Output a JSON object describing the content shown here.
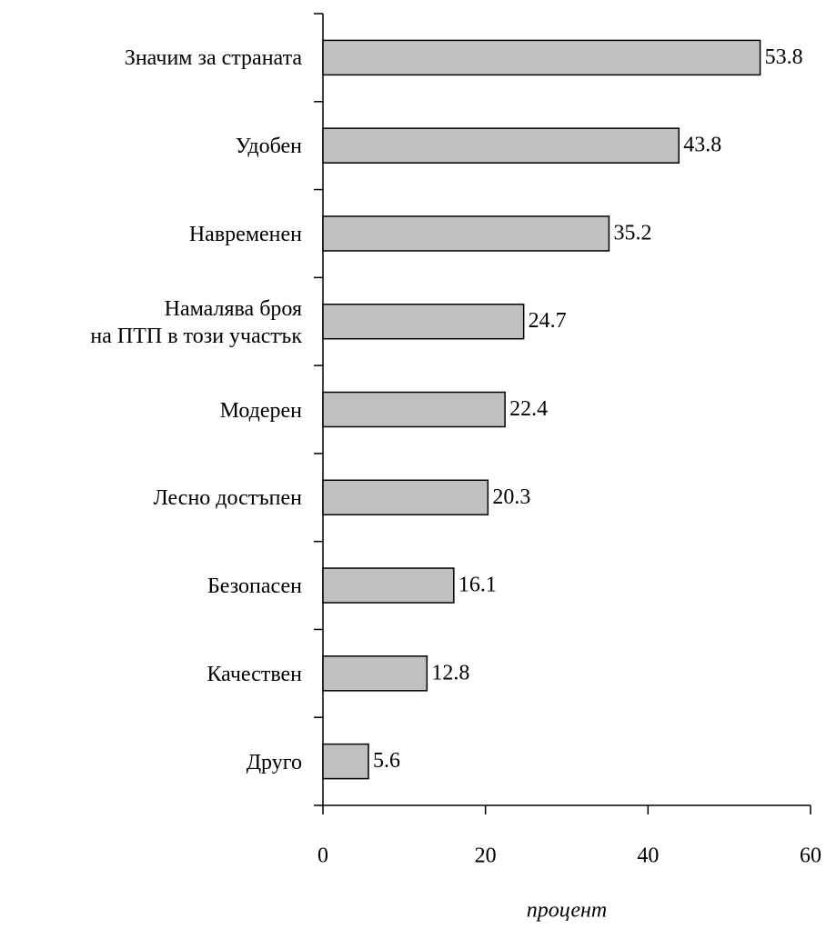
{
  "chart_data": {
    "type": "barh",
    "categories": [
      "Значим за страната",
      "Удобен",
      "Навременен",
      "Намалява броя\nна ПТП в този участък",
      "Модерен",
      "Лесно достъпен",
      "Безопасен",
      "Качествен",
      "Друго"
    ],
    "values": [
      53.8,
      43.8,
      35.2,
      24.7,
      22.4,
      20.3,
      16.1,
      12.8,
      5.6
    ],
    "color": "#c0c0c0",
    "xlim": [
      0,
      60
    ],
    "xticks": [
      0,
      20,
      40,
      60
    ],
    "xlabel": "процент",
    "grid": false
  }
}
